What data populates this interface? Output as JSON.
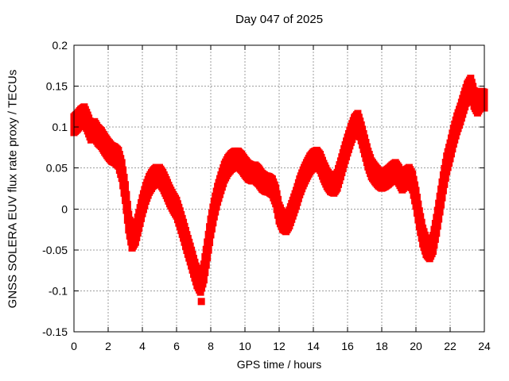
{
  "window": {
    "background": "#ffffff"
  },
  "chart_data": {
    "type": "scatter",
    "title": "Day 047 of 2025",
    "xlabel": "GPS time / hours",
    "ylabel": "GNSS SOLERA EUV flux rate proxy / TECUs",
    "xlim": [
      0,
      24
    ],
    "ylim": [
      -0.15,
      0.2
    ],
    "xticks": [
      0,
      2,
      4,
      6,
      8,
      10,
      12,
      14,
      16,
      18,
      20,
      22,
      24
    ],
    "xtick_labels": [
      "0",
      "2",
      "4",
      "6",
      "8",
      "10",
      "12",
      "14",
      "16",
      "18",
      "20",
      "22",
      "24"
    ],
    "yticks": [
      -0.15,
      -0.1,
      -0.05,
      0,
      0.05,
      0.1,
      0.15,
      0.2
    ],
    "ytick_labels": [
      "-0.15",
      "-0.1",
      "-0.05",
      "0",
      "0.05",
      "0.1",
      "0.15",
      "0.2"
    ],
    "grid": true,
    "legend": "none",
    "point_color": "#ff0000",
    "grid_color": "#9e9e9e",
    "frame_color": "#000000",
    "marker": "filled-square",
    "marker_size": 9,
    "band_halfwidth": 0.014,
    "series": [
      {
        "name": "EUV flux rate proxy",
        "x": [
          0.0,
          0.2,
          0.4,
          0.6,
          0.8,
          1.0,
          1.2,
          1.4,
          1.6,
          1.8,
          2.0,
          2.2,
          2.4,
          2.6,
          2.8,
          3.0,
          3.2,
          3.4,
          3.6,
          3.8,
          4.0,
          4.2,
          4.4,
          4.6,
          4.8,
          5.0,
          5.2,
          5.4,
          5.6,
          5.8,
          6.0,
          6.2,
          6.4,
          6.6,
          6.8,
          7.0,
          7.2,
          7.4,
          7.6,
          7.8,
          8.0,
          8.2,
          8.4,
          8.6,
          8.8,
          9.0,
          9.2,
          9.4,
          9.6,
          9.8,
          10.0,
          10.2,
          10.4,
          10.6,
          10.8,
          11.0,
          11.2,
          11.4,
          11.6,
          11.8,
          12.0,
          12.2,
          12.4,
          12.6,
          12.8,
          13.0,
          13.2,
          13.4,
          13.6,
          13.8,
          14.0,
          14.2,
          14.4,
          14.6,
          14.8,
          15.0,
          15.2,
          15.4,
          15.6,
          15.8,
          16.0,
          16.2,
          16.4,
          16.6,
          16.8,
          17.0,
          17.2,
          17.4,
          17.6,
          17.8,
          18.0,
          18.2,
          18.4,
          18.6,
          18.8,
          19.0,
          19.2,
          19.4,
          19.6,
          19.8,
          20.0,
          20.2,
          20.4,
          20.6,
          20.8,
          21.0,
          21.2,
          21.4,
          21.6,
          21.8,
          22.0,
          22.2,
          22.4,
          22.6,
          22.8,
          23.0,
          23.2,
          23.4,
          23.6,
          23.8,
          24.0
        ],
        "y": [
          0.103,
          0.107,
          0.112,
          0.115,
          0.105,
          0.094,
          0.097,
          0.09,
          0.086,
          0.079,
          0.073,
          0.068,
          0.066,
          0.062,
          0.047,
          0.02,
          -0.016,
          -0.038,
          -0.031,
          -0.014,
          0.004,
          0.019,
          0.03,
          0.037,
          0.041,
          0.041,
          0.035,
          0.026,
          0.016,
          0.008,
          0.001,
          -0.012,
          -0.026,
          -0.041,
          -0.055,
          -0.07,
          -0.084,
          -0.092,
          -0.077,
          -0.05,
          -0.022,
          0.0,
          0.018,
          0.032,
          0.045,
          0.053,
          0.058,
          0.061,
          0.061,
          0.057,
          0.051,
          0.046,
          0.044,
          0.044,
          0.04,
          0.034,
          0.031,
          0.03,
          0.027,
          0.016,
          -0.005,
          -0.015,
          -0.018,
          -0.011,
          0.001,
          0.013,
          0.027,
          0.038,
          0.047,
          0.055,
          0.06,
          0.062,
          0.057,
          0.046,
          0.037,
          0.031,
          0.029,
          0.035,
          0.049,
          0.064,
          0.078,
          0.091,
          0.102,
          0.107,
          0.093,
          0.077,
          0.061,
          0.049,
          0.043,
          0.038,
          0.035,
          0.037,
          0.04,
          0.044,
          0.047,
          0.041,
          0.033,
          0.038,
          0.041,
          0.033,
          0.013,
          -0.012,
          -0.033,
          -0.046,
          -0.051,
          -0.042,
          -0.02,
          0.006,
          0.032,
          0.055,
          0.071,
          0.089,
          0.104,
          0.116,
          0.13,
          0.143,
          0.15,
          0.135,
          0.127,
          0.134,
          0.133
        ]
      }
    ],
    "outliers": [
      {
        "x": 7.45,
        "y": -0.113
      }
    ]
  }
}
